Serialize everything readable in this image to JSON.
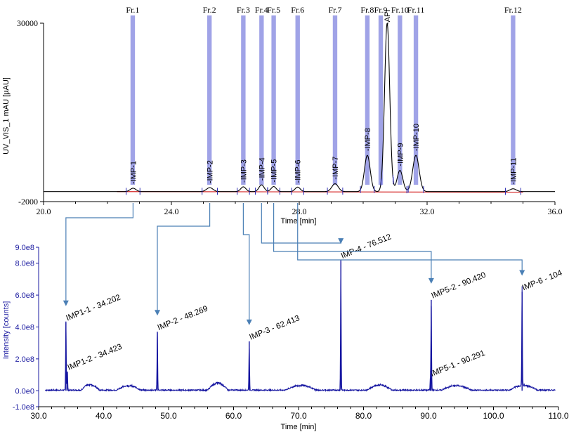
{
  "chart_data": [
    {
      "type": "line",
      "xlabel": "Time [min]",
      "ylabel": "UV_VIS_1 mAU [µAU]",
      "xlim": [
        20.0,
        36.0
      ],
      "ylim": [
        -2000,
        30000
      ],
      "x_ticks": [
        "20.0",
        "24.0",
        "28.0",
        "32.0",
        "36.0"
      ],
      "y_ticks": [
        "30000",
        "-2000"
      ],
      "fractions": [
        {
          "label": "Fr.1",
          "start": 22.72,
          "end": 22.86
        },
        {
          "label": "Fr.2",
          "start": 25.12,
          "end": 25.26
        },
        {
          "label": "Fr.3",
          "start": 26.18,
          "end": 26.32
        },
        {
          "label": "Fr.4",
          "start": 26.75,
          "end": 26.89
        },
        {
          "label": "Fr.5",
          "start": 27.13,
          "end": 27.27
        },
        {
          "label": "Fr.6",
          "start": 27.88,
          "end": 28.02
        },
        {
          "label": "Fr.7",
          "start": 29.05,
          "end": 29.19
        },
        {
          "label": "Fr.8",
          "start": 30.06,
          "end": 30.2
        },
        {
          "label": "Fr.9",
          "start": 30.48,
          "end": 30.62
        },
        {
          "label": "Fr.10",
          "start": 31.08,
          "end": 31.22
        },
        {
          "label": "Fr.11",
          "start": 31.58,
          "end": 31.72
        },
        {
          "label": "Fr.12",
          "start": 34.62,
          "end": 34.76
        }
      ],
      "peaks": [
        {
          "label": "IMP-1",
          "x": 22.8,
          "y": 400
        },
        {
          "label": "IMP-2",
          "x": 25.2,
          "y": 500
        },
        {
          "label": "IMP-3",
          "x": 26.25,
          "y": 650
        },
        {
          "label": "IMP-4",
          "x": 26.82,
          "y": 1000
        },
        {
          "label": "IMP-5",
          "x": 27.2,
          "y": 700
        },
        {
          "label": "IMP-6",
          "x": 27.95,
          "y": 600
        },
        {
          "label": "IMP-7",
          "x": 29.12,
          "y": 1200
        },
        {
          "label": "IMP-8",
          "x": 30.13,
          "y": 6300
        },
        {
          "label": "API",
          "x": 30.75,
          "y": 30000
        },
        {
          "label": "IMP-9",
          "x": 31.15,
          "y": 3600
        },
        {
          "label": "IMP-10",
          "x": 31.65,
          "y": 6300
        },
        {
          "label": "IMP-11",
          "x": 34.69,
          "y": 300
        }
      ]
    },
    {
      "type": "line",
      "xlabel": "Time [min]",
      "ylabel": "Intensity [counts]",
      "xlim": [
        30.0,
        110.0
      ],
      "ylim": [
        -100000000.0,
        900000000.0
      ],
      "x_ticks": [
        "30.0",
        "40.0",
        "50.0",
        "60.0",
        "70.0",
        "80.0",
        "90.0",
        "100.0",
        "110.0"
      ],
      "y_ticks": [
        "9.0e8",
        "8.0e8",
        "6.0e8",
        "4.0e8",
        "2.0e8",
        "0.0e0",
        "-1.0e8"
      ],
      "series": [
        {
          "peaks": [
            {
              "label": "IMP1-1 - 34.202",
              "x": 34.2,
              "y": 430000000.0
            },
            {
              "label": "IMP1-2 - 34.423",
              "x": 34.42,
              "y": 120000000.0
            },
            {
              "label": "IMP-2 - 48.269",
              "x": 48.27,
              "y": 370000000.0
            },
            {
              "label": "IMP-3 - 62.413",
              "x": 62.41,
              "y": 310000000.0
            },
            {
              "label": "IMP-4 - 76.512",
              "x": 76.51,
              "y": 820000000.0
            },
            {
              "label": "IMP5-1 - 90.291",
              "x": 90.29,
              "y": 80000000.0
            },
            {
              "label": "IMP5-2 - 90.420",
              "x": 90.42,
              "y": 570000000.0
            },
            {
              "label": "IMP-6 - 104",
              "x": 104.4,
              "y": 620000000.0
            }
          ]
        }
      ],
      "links": [
        {
          "from": "IMP-1",
          "to": "IMP1-1 - 34.202"
        },
        {
          "from": "IMP-2",
          "to": "IMP-2 - 48.269"
        },
        {
          "from": "IMP-3",
          "to": "IMP-3 - 62.413"
        },
        {
          "from": "IMP-4",
          "to": "IMP-4 - 76.512"
        },
        {
          "from": "IMP-5",
          "to": "IMP5-2 - 90.420"
        },
        {
          "from": "IMP-6",
          "to": "IMP-6 - 104"
        }
      ]
    }
  ],
  "colors": {
    "fraction": "#9b9ee6",
    "uv_trace": "#000000",
    "baseline": "#d42020",
    "ms_trace": "#1414a0",
    "ms_axis_text": "#1a1aa0",
    "arrow": "#4a7fb5"
  }
}
